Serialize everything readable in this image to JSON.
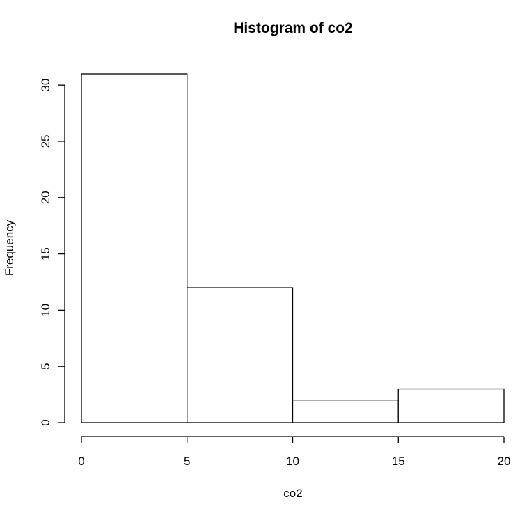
{
  "chart_data": {
    "type": "bar",
    "title": "Histogram of co2",
    "xlabel": "co2",
    "ylabel": "Frequency",
    "bins": [
      {
        "start": 0,
        "end": 5,
        "count": 31
      },
      {
        "start": 5,
        "end": 10,
        "count": 12
      },
      {
        "start": 10,
        "end": 15,
        "count": 2
      },
      {
        "start": 15,
        "end": 20,
        "count": 3
      }
    ],
    "xlim": [
      0,
      20
    ],
    "ylim": [
      0,
      31
    ],
    "x_ticks": [
      0,
      5,
      10,
      15,
      20
    ],
    "y_ticks": [
      0,
      5,
      10,
      15,
      20,
      25,
      30
    ],
    "grid": false,
    "legend": "none"
  }
}
